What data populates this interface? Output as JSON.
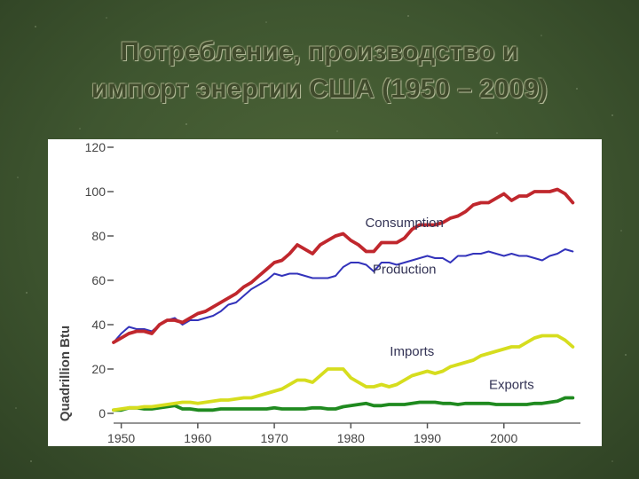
{
  "slide": {
    "title_line1": "Потребление, производство и",
    "title_line2": "импорт энергии США (1950 – 2009)"
  },
  "colors": {
    "consumption": "#c0272d",
    "production": "#3333bb",
    "imports": "#d6dd1e",
    "exports": "#1f8a1f",
    "axis": "#555555"
  },
  "chart_data": {
    "type": "line",
    "title": "",
    "xlabel": "",
    "ylabel": "Quadrillion Btu",
    "xlim": [
      1949,
      2010
    ],
    "ylim": [
      0,
      120
    ],
    "xticks": [
      1950,
      1960,
      1970,
      1980,
      1990,
      2000
    ],
    "yticks": [
      0,
      20,
      40,
      60,
      80,
      100,
      120
    ],
    "grid": false,
    "x": [
      1949,
      1950,
      1951,
      1952,
      1953,
      1954,
      1955,
      1956,
      1957,
      1958,
      1959,
      1960,
      1961,
      1962,
      1963,
      1964,
      1965,
      1966,
      1967,
      1968,
      1969,
      1970,
      1971,
      1972,
      1973,
      1974,
      1975,
      1976,
      1977,
      1978,
      1979,
      1980,
      1981,
      1982,
      1983,
      1984,
      1985,
      1986,
      1987,
      1988,
      1989,
      1990,
      1991,
      1992,
      1993,
      1994,
      1995,
      1996,
      1997,
      1998,
      1999,
      2000,
      2001,
      2002,
      2003,
      2004,
      2005,
      2006,
      2007,
      2008,
      2009
    ],
    "series": [
      {
        "name": "Consumption",
        "color_key": "consumption",
        "values": [
          32,
          34,
          36,
          37,
          37,
          36,
          40,
          42,
          42,
          41,
          43,
          45,
          46,
          48,
          50,
          52,
          54,
          57,
          59,
          62,
          65,
          68,
          69,
          72,
          76,
          74,
          72,
          76,
          78,
          80,
          81,
          78,
          76,
          73,
          73,
          77,
          77,
          77,
          79,
          83,
          85,
          85,
          85,
          86,
          88,
          89,
          91,
          94,
          95,
          95,
          97,
          99,
          96,
          98,
          98,
          100,
          100,
          100,
          101,
          99,
          95
        ]
      },
      {
        "name": "Production",
        "color_key": "production",
        "values": [
          32,
          36,
          39,
          38,
          38,
          37,
          40,
          42,
          43,
          40,
          42,
          42,
          43,
          44,
          46,
          49,
          50,
          53,
          56,
          58,
          60,
          63,
          62,
          63,
          63,
          62,
          61,
          61,
          61,
          62,
          66,
          68,
          68,
          67,
          64,
          68,
          68,
          67,
          68,
          69,
          70,
          71,
          70,
          70,
          68,
          71,
          71,
          72,
          72,
          73,
          72,
          71,
          72,
          71,
          71,
          70,
          69,
          71,
          72,
          74,
          73
        ]
      },
      {
        "name": "Imports",
        "color_key": "imports",
        "values": [
          1.5,
          2,
          2.5,
          2.5,
          3,
          3,
          3.5,
          4,
          4.5,
          5,
          5,
          4.5,
          5,
          5.5,
          6,
          6,
          6.5,
          7,
          7,
          8,
          9,
          10,
          11,
          13,
          15,
          15,
          14,
          17,
          20,
          20,
          20,
          16,
          14,
          12,
          12,
          13,
          12,
          13,
          15,
          17,
          18,
          19,
          18,
          19,
          21,
          22,
          23,
          24,
          26,
          27,
          28,
          29,
          30,
          30,
          32,
          34,
          35,
          35,
          35,
          33,
          30
        ]
      },
      {
        "name": "Exports",
        "color_key": "exports",
        "values": [
          1.5,
          1.5,
          2.5,
          2.5,
          2,
          2,
          2.5,
          3,
          3.5,
          2,
          2,
          1.5,
          1.5,
          1.5,
          2,
          2,
          2,
          2,
          2,
          2,
          2,
          2.5,
          2,
          2,
          2,
          2,
          2.5,
          2.5,
          2,
          2,
          3,
          3.5,
          4,
          4.5,
          3.5,
          3.5,
          4,
          4,
          4,
          4.5,
          5,
          5,
          5,
          4.5,
          4.5,
          4,
          4.5,
          4.5,
          4.5,
          4.5,
          4,
          4,
          4,
          4,
          4,
          4.5,
          4.5,
          5,
          5.5,
          7,
          7
        ]
      }
    ]
  }
}
